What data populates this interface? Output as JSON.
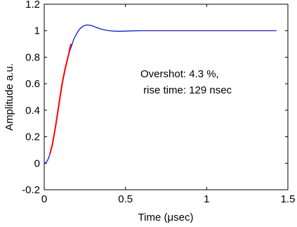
{
  "chart_data": {
    "type": "line",
    "title": "",
    "xlabel": "Time (μsec)",
    "ylabel": "Amplitude a.u.",
    "xlim": [
      0,
      1.5
    ],
    "ylim": [
      -0.2,
      1.2
    ],
    "xticks": [
      0,
      0.5,
      1,
      1.5
    ],
    "xtick_labels": [
      "0",
      "0.5",
      "1",
      "1.5"
    ],
    "yticks": [
      -0.2,
      0,
      0.2,
      0.4,
      0.6,
      0.8,
      1,
      1.2
    ],
    "ytick_labels": [
      "-0.2",
      "0",
      "0.2",
      "0.4",
      "0.6",
      "0.8",
      "1",
      "1.2"
    ],
    "grid": false,
    "annotation_lines": [
      "Overshot: 4.3 %,",
      " rise time: 129 nsec"
    ],
    "series": [
      {
        "color": "#0000ff",
        "x": [
          0,
          0.01,
          0.02,
          0.03,
          0.04,
          0.05,
          0.07,
          0.1,
          0.12,
          0.15,
          0.18,
          0.2,
          0.22,
          0.24,
          0.26,
          0.28,
          0.3,
          0.32,
          0.35,
          0.38,
          0.4,
          0.43,
          0.46,
          0.5,
          0.55,
          0.6,
          0.7,
          0.8,
          1.0,
          1.2,
          1.43
        ],
        "y": [
          0.0,
          0.005,
          0.02,
          0.05,
          0.09,
          0.14,
          0.28,
          0.52,
          0.66,
          0.82,
          0.93,
          0.98,
          1.015,
          1.035,
          1.043,
          1.042,
          1.035,
          1.025,
          1.012,
          1.004,
          1.0,
          0.997,
          0.996,
          0.997,
          0.999,
          1.0,
          1.0,
          1.0,
          1.0,
          1.0,
          1.0
        ]
      },
      {
        "color": "#ff0000",
        "x": [
          0.035,
          0.05,
          0.07,
          0.09,
          0.11,
          0.13,
          0.15,
          0.164
        ],
        "y": [
          0.07,
          0.14,
          0.28,
          0.44,
          0.6,
          0.72,
          0.82,
          0.9
        ]
      }
    ]
  }
}
